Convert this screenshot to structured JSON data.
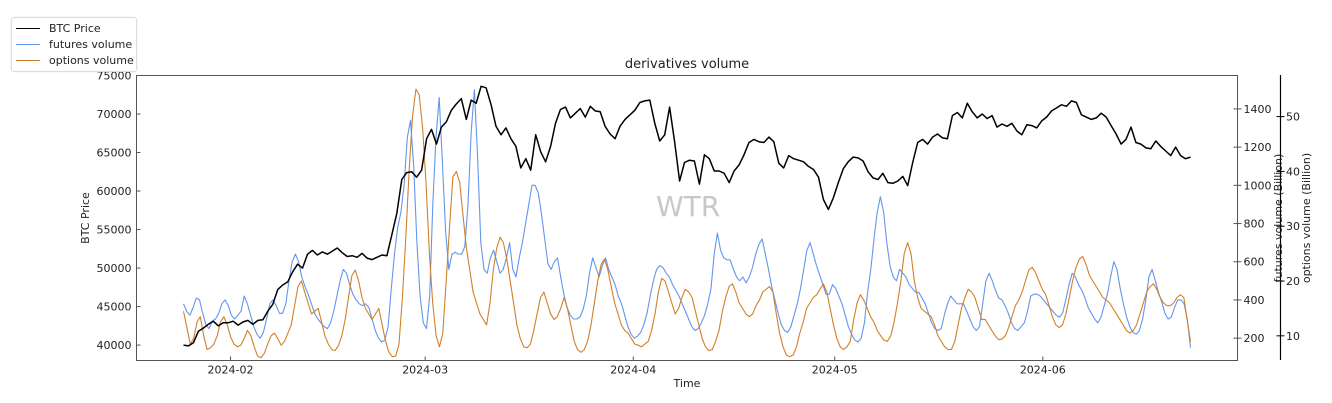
{
  "chart_data": {
    "type": "line",
    "title": "derivatives volume",
    "watermark": "WTR",
    "xlabel": "Time",
    "x_tick_labels": [
      "2024-02",
      "2024-03",
      "2024-04",
      "2024-05",
      "2024-06"
    ],
    "x_tick_dates": [
      "2024-02-01",
      "2024-03-01",
      "2024-04-01",
      "2024-05-01",
      "2024-06-01"
    ],
    "x_range": [
      "2024-01-18",
      "2024-06-30"
    ],
    "axes": {
      "left": {
        "label": "BTC Price",
        "ylim": [
          38000,
          75000
        ],
        "ticks": [
          40000,
          45000,
          50000,
          55000,
          60000,
          65000,
          70000,
          75000
        ]
      },
      "right1": {
        "label": "futures volume (Billion)",
        "ylim": [
          83,
          1575
        ],
        "ticks": [
          200,
          400,
          600,
          800,
          1000,
          1200,
          1400
        ]
      },
      "right2": {
        "label": "options volume (Billion)",
        "ylim": [
          5.5,
          57.5
        ],
        "ticks": [
          10,
          20,
          30,
          40,
          50
        ]
      }
    },
    "legend": {
      "placement": "top-left-outside",
      "entries": [
        "BTC Price",
        "futures volume",
        "options volume"
      ]
    },
    "grid": false,
    "start_date": "2024-01-25",
    "step_days": 1,
    "series": [
      {
        "name": "BTC Price",
        "axis": "left",
        "color": "#000000",
        "values": [
          40000,
          39900,
          40300,
          41800,
          42200,
          42700,
          43100,
          42500,
          42900,
          42900,
          43100,
          42600,
          43000,
          43200,
          42700,
          43200,
          43300,
          44400,
          45300,
          47200,
          47800,
          48200,
          49500,
          50500,
          50000,
          51800,
          52300,
          51700,
          52100,
          51800,
          52200,
          52600,
          52000,
          51500,
          51600,
          51400,
          51900,
          51300,
          51100,
          51400,
          51700,
          51600,
          54300,
          57100,
          61500,
          62400,
          62500,
          61800,
          62700,
          66800,
          68000,
          66100,
          68300,
          69000,
          70500,
          71300,
          72000,
          69300,
          71800,
          71400,
          73600,
          73400,
          71200,
          68400,
          67300,
          68200,
          66800,
          65800,
          63000,
          64200,
          62700,
          67300,
          65100,
          63800,
          65800,
          68800,
          70600,
          70900,
          69500,
          70100,
          70700,
          69600,
          71000,
          70400,
          70300,
          68400,
          67400,
          66800,
          68400,
          69300,
          69900,
          70500,
          71500,
          71700,
          71800,
          68800,
          66500,
          67300,
          70900,
          66400,
          61300,
          63700,
          64000,
          63900,
          60900,
          64700,
          64200,
          62600,
          62600,
          62300,
          61100,
          62600,
          63400,
          64700,
          66300,
          66700,
          66400,
          66300,
          67000,
          66400,
          63600,
          63000,
          64600,
          64200,
          64000,
          63800,
          63200,
          62800,
          61800,
          58900,
          57600,
          59100,
          61100,
          62900,
          63800,
          64400,
          64300,
          63900,
          62500,
          61700,
          61500,
          62300,
          61100,
          61000,
          61300,
          61900,
          60700,
          63700,
          66300,
          66700,
          66100,
          67000,
          67400,
          66900,
          66800,
          69800,
          70200,
          69500,
          71400,
          70300,
          69500,
          70000,
          69400,
          69800,
          68300,
          68700,
          68400,
          68800,
          67800,
          67300,
          68600,
          68500,
          68200,
          69100,
          69600,
          70400,
          70800,
          71200,
          71000,
          71700,
          71500,
          69900,
          69600,
          69300,
          69500,
          70100,
          69600,
          68500,
          67400,
          66100,
          66700,
          68300,
          66300,
          66100,
          65600,
          65500,
          66500,
          65800,
          65200,
          64600,
          65700,
          64600,
          64200,
          64400
        ]
      },
      {
        "name": "futures volume",
        "axis": "right1",
        "color": "#6495ed",
        "values": [
          380,
          340,
          320,
          360,
          410,
          400,
          330,
          270,
          250,
          290,
          300,
          330,
          380,
          400,
          370,
          320,
          300,
          320,
          340,
          420,
          380,
          320,
          260,
          220,
          200,
          230,
          300,
          380,
          400,
          370,
          330,
          330,
          380,
          500,
          600,
          640,
          600,
          520,
          470,
          430,
          380,
          330,
          300,
          280,
          260,
          250,
          280,
          340,
          420,
          500,
          560,
          540,
          480,
          430,
          400,
          380,
          370,
          380,
          360,
          300,
          240,
          200,
          180,
          190,
          260,
          460,
          640,
          780,
          860,
          1000,
          1250,
          1340,
          1100,
          700,
          420,
          280,
          250,
          420,
          900,
          1250,
          1460,
          1120,
          760,
          560,
          640,
          650,
          640,
          640,
          680,
          900,
          1280,
          1500,
          1150,
          700,
          560,
          540,
          620,
          660,
          600,
          540,
          560,
          620,
          700,
          560,
          520,
          620,
          700,
          800,
          900,
          1000,
          1000,
          960,
          850,
          720,
          590,
          560,
          600,
          620,
          520,
          430,
          360,
          320,
          300,
          300,
          310,
          350,
          420,
          540,
          620,
          570,
          520,
          580,
          620,
          560,
          520,
          480,
          420,
          380,
          320,
          260,
          220,
          200,
          210,
          230,
          270,
          330,
          420,
          500,
          560,
          580,
          570,
          540,
          520,
          480,
          450,
          420,
          380,
          340,
          300,
          260,
          240,
          250,
          280,
          320,
          380,
          460,
          640,
          750,
          660,
          620,
          610,
          610,
          560,
          520,
          500,
          520,
          490,
          520,
          570,
          640,
          690,
          720,
          640,
          560,
          470,
          400,
          330,
          270,
          240,
          230,
          260,
          320,
          380,
          460,
          560,
          660,
          700,
          640,
          580,
          530,
          480,
          430,
          430,
          480,
          460,
          420,
          380,
          320,
          260,
          220,
          190,
          180,
          200,
          280,
          440,
          560,
          720,
          860,
          940,
          860,
          700,
          580,
          520,
          500,
          560,
          540,
          520,
          480,
          460,
          440,
          440,
          410,
          380,
          330,
          280,
          250,
          240,
          250,
          320,
          380,
          420,
          400,
          380,
          380,
          380,
          340,
          300,
          260,
          240,
          260,
          380,
          500,
          540,
          500,
          450,
          410,
          400,
          370,
          330,
          280,
          250,
          240,
          260,
          280,
          340,
          420,
          430,
          430,
          420,
          400,
          380,
          360,
          340,
          320,
          310,
          330,
          400,
          480,
          540,
          520,
          480,
          450,
          410,
          360,
          330,
          300,
          280,
          310,
          370,
          430,
          520,
          600,
          560,
          460,
          380,
          310,
          260,
          230,
          220,
          240,
          300,
          400,
          520,
          560,
          500,
          440,
          390,
          330,
          300,
          310,
          360,
          400,
          400,
          380,
          300,
          150
        ]
      },
      {
        "name": "options volume",
        "axis": "right2",
        "color": "#d0802a",
        "values": [
          14.5,
          11.5,
          8.5,
          9.5,
          12.5,
          13.5,
          10,
          7.5,
          7.8,
          8.5,
          10,
          12.5,
          13.5,
          12,
          9.8,
          8.5,
          8,
          8.3,
          9.5,
          11,
          10,
          8,
          6.3,
          6,
          6.8,
          8.5,
          10,
          10.5,
          9.5,
          8.3,
          9,
          10.5,
          12,
          15.5,
          19,
          20,
          18,
          16,
          14,
          14.5,
          15,
          12.5,
          10,
          8.5,
          7.5,
          7.3,
          8.2,
          10,
          13,
          17,
          21,
          22,
          20,
          17,
          15,
          14,
          13,
          14,
          15,
          12,
          9,
          7,
          6.2,
          6.3,
          8.5,
          17,
          28,
          40,
          50,
          55,
          54,
          48,
          38,
          25,
          16,
          10,
          8,
          10.5,
          20,
          30,
          39,
          40,
          38,
          32,
          26,
          22,
          18,
          16,
          14,
          13,
          12,
          16,
          22,
          26,
          28,
          27,
          24,
          20,
          16,
          12,
          9.5,
          8,
          7.8,
          8.5,
          11,
          14,
          17,
          18,
          16,
          14,
          13,
          13.5,
          15,
          17,
          15,
          12,
          9,
          7.5,
          7,
          7.5,
          9,
          12,
          16,
          20,
          23,
          24,
          22,
          19,
          16,
          14,
          12,
          11,
          10.5,
          9.5,
          8.5,
          8.3,
          8,
          8.5,
          9,
          11,
          14,
          18,
          20.5,
          20,
          18,
          16,
          14,
          15,
          17,
          18.5,
          18,
          17,
          14.5,
          12,
          9.5,
          8,
          7.3,
          7.5,
          9,
          11,
          14.5,
          17,
          19,
          19.5,
          18,
          16,
          15,
          14,
          13.5,
          14,
          15.5,
          16.5,
          18,
          18.5,
          19,
          18,
          14,
          10.5,
          8,
          6.5,
          6.2,
          6.5,
          8,
          10.5,
          12.5,
          15,
          16,
          17,
          17.5,
          18.5,
          19.5,
          18,
          15,
          12,
          9.5,
          8,
          7.5,
          8,
          9,
          13,
          16,
          17.5,
          16.5,
          15,
          13.5,
          12.5,
          11,
          10,
          9.2,
          9,
          10,
          12.5,
          16,
          20,
          25,
          27,
          25,
          20,
          17,
          15,
          14.5,
          14,
          13.5,
          12,
          10,
          9,
          8,
          7.5,
          7.5,
          9,
          12,
          15,
          17,
          18.5,
          18,
          17,
          15,
          13,
          13,
          12,
          11,
          10,
          9.3,
          9.4,
          10,
          11.5,
          13.5,
          15.5,
          16.5,
          18,
          20,
          22,
          22.5,
          21.5,
          20,
          18.5,
          17.5,
          15.5,
          13.5,
          12,
          11.5,
          12,
          14,
          17,
          20,
          22.5,
          24,
          24.5,
          23,
          21,
          20,
          19,
          18,
          17,
          16.5,
          16,
          15,
          14,
          13,
          12,
          11,
          10.5,
          11,
          12,
          14,
          16,
          18,
          19,
          19.5,
          18.5,
          17,
          16,
          15.5,
          15.5,
          16,
          17,
          17.5,
          17,
          13,
          9
        ]
      }
    ]
  }
}
